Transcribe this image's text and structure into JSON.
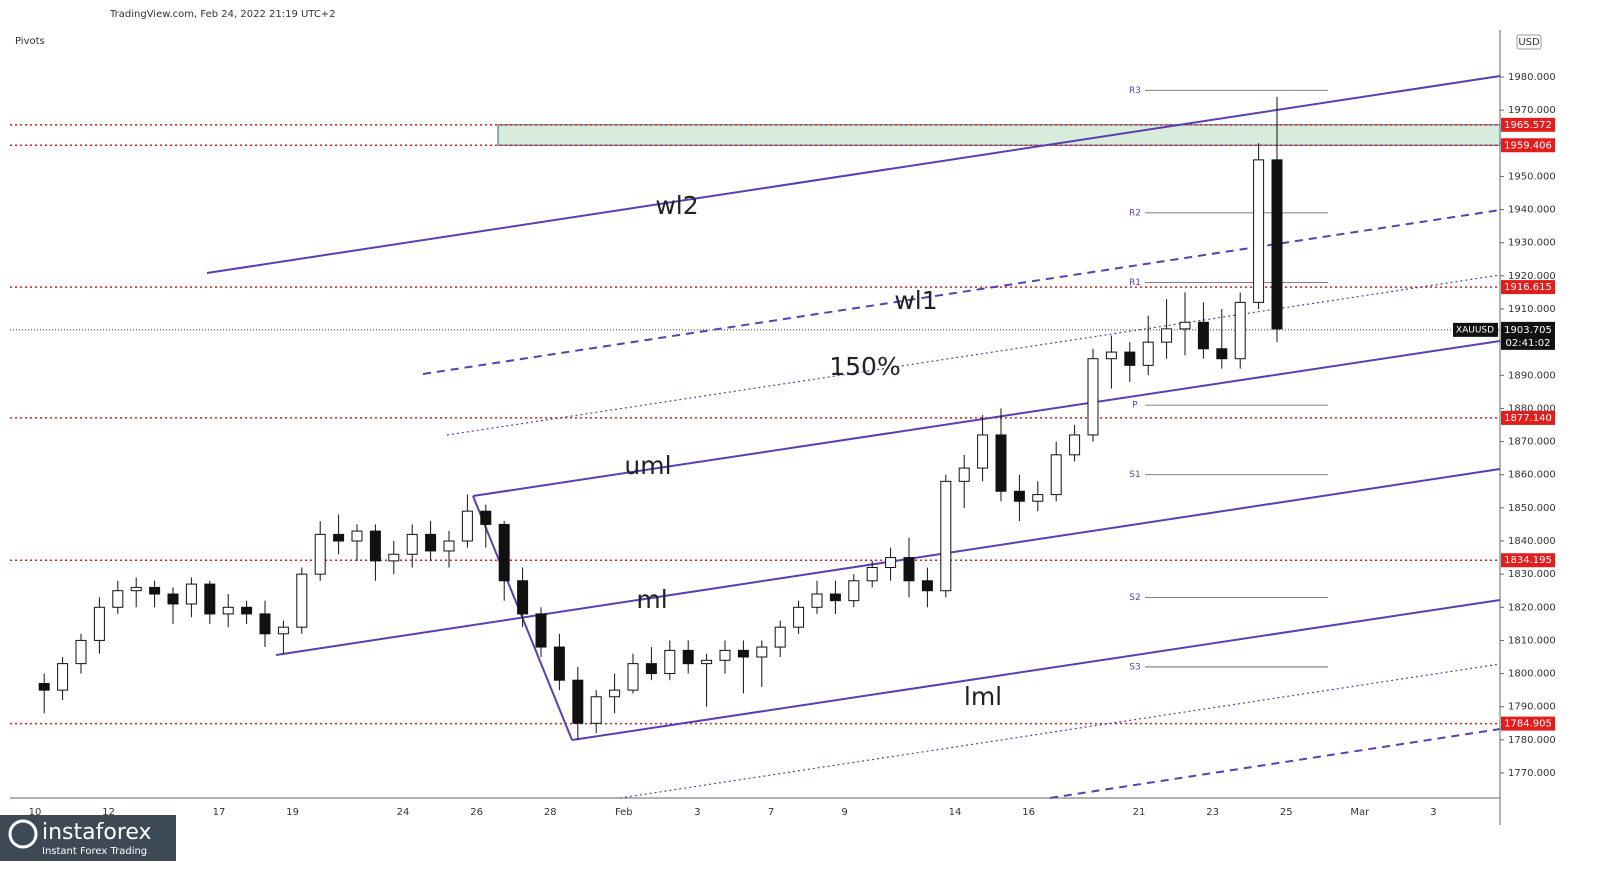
{
  "header": {
    "source": "TradingView.com, Feb 24, 2022 21:19 UTC+2",
    "indicator": "Pivots",
    "currency": "USD"
  },
  "watermark": {
    "brand": "instaforex",
    "tagline": "Instant Forex Trading"
  },
  "chart_data": {
    "type": "candlestick",
    "symbol": "XAUUSD",
    "countdown": "02:41:02",
    "ylim": [
      1770,
      1980
    ],
    "yticks": [
      {
        "value": 1770,
        "label": "1770.000"
      },
      {
        "value": 1780,
        "label": "1780.000"
      },
      {
        "value": 1790,
        "label": "1790.000"
      },
      {
        "value": 1800,
        "label": "1800.000"
      },
      {
        "value": 1810,
        "label": "1810.000"
      },
      {
        "value": 1820,
        "label": "1820.000"
      },
      {
        "value": 1830,
        "label": "1830.000"
      },
      {
        "value": 1840,
        "label": "1840.000"
      },
      {
        "value": 1850,
        "label": "1850.000"
      },
      {
        "value": 1860,
        "label": "1860.000"
      },
      {
        "value": 1870,
        "label": "1870.000"
      },
      {
        "value": 1880,
        "label": "1880.000"
      },
      {
        "value": 1890,
        "label": "1890.000"
      },
      {
        "value": 1900,
        "label": "1900.000"
      },
      {
        "value": 1910,
        "label": "1910.000"
      },
      {
        "value": 1920,
        "label": "1920.000"
      },
      {
        "value": 1930,
        "label": "1930.000"
      },
      {
        "value": 1940,
        "label": "1940.000"
      },
      {
        "value": 1950,
        "label": "1950.000"
      },
      {
        "value": 1960,
        "label": "1960.000"
      },
      {
        "value": 1970,
        "label": "1970.000"
      },
      {
        "value": 1980,
        "label": "1980.000"
      }
    ],
    "xlabels": [
      "10",
      "12",
      "17",
      "19",
      "24",
      "26",
      "28",
      "Feb",
      "3",
      "7",
      "9",
      "14",
      "16",
      "21",
      "23",
      "25",
      "Mar",
      "3"
    ],
    "open": [
      1797,
      1795,
      1803,
      1810,
      1820,
      1825,
      1826,
      1824,
      1821,
      1827,
      1818,
      1820,
      1818,
      1812,
      1814,
      1830,
      1842,
      1840,
      1843,
      1834,
      1836,
      1842,
      1837,
      1840,
      1849,
      1845,
      1828,
      1818,
      1808,
      1798,
      1785,
      1793,
      1795,
      1803,
      1800,
      1807,
      1803,
      1804,
      1807,
      1805,
      1808,
      1814,
      1820,
      1824,
      1822,
      1828,
      1832,
      1835,
      1828,
      1825,
      1858,
      1862,
      1872,
      1855,
      1852,
      1854,
      1866,
      1872,
      1895,
      1897,
      1893,
      1900,
      1904,
      1906,
      1898,
      1895,
      1912,
      1955
    ],
    "high": [
      1800,
      1805,
      1812,
      1823,
      1828,
      1829,
      1828,
      1826,
      1829,
      1828,
      1824,
      1822,
      1822,
      1816,
      1832,
      1846,
      1848,
      1845,
      1845,
      1840,
      1845,
      1846,
      1843,
      1854,
      1851,
      1846,
      1832,
      1820,
      1812,
      1802,
      1795,
      1800,
      1806,
      1808,
      1810,
      1810,
      1806,
      1810,
      1810,
      1810,
      1816,
      1822,
      1828,
      1828,
      1830,
      1834,
      1838,
      1841,
      1832,
      1860,
      1866,
      1878,
      1880,
      1860,
      1858,
      1870,
      1875,
      1898,
      1902,
      1900,
      1908,
      1913,
      1915,
      1912,
      1910,
      1915,
      1960,
      1974
    ],
    "low": [
      1788,
      1792,
      1800,
      1806,
      1818,
      1820,
      1820,
      1815,
      1817,
      1815,
      1814,
      1815,
      1808,
      1806,
      1812,
      1828,
      1836,
      1834,
      1828,
      1830,
      1832,
      1834,
      1832,
      1838,
      1838,
      1822,
      1814,
      1805,
      1795,
      1780,
      1782,
      1788,
      1794,
      1798,
      1798,
      1800,
      1790,
      1800,
      1794,
      1796,
      1805,
      1812,
      1818,
      1818,
      1820,
      1826,
      1828,
      1823,
      1820,
      1823,
      1850,
      1858,
      1852,
      1846,
      1849,
      1852,
      1864,
      1870,
      1886,
      1888,
      1890,
      1895,
      1896,
      1895,
      1892,
      1892,
      1910,
      1900
    ],
    "close": [
      1795,
      1803,
      1810,
      1820,
      1825,
      1826,
      1824,
      1821,
      1827,
      1818,
      1820,
      1818,
      1812,
      1814,
      1830,
      1842,
      1840,
      1843,
      1834,
      1836,
      1842,
      1837,
      1840,
      1849,
      1845,
      1828,
      1818,
      1808,
      1798,
      1785,
      1793,
      1795,
      1803,
      1800,
      1807,
      1803,
      1804,
      1807,
      1805,
      1808,
      1814,
      1820,
      1824,
      1822,
      1828,
      1832,
      1835,
      1828,
      1825,
      1858,
      1862,
      1872,
      1855,
      1852,
      1854,
      1866,
      1872,
      1895,
      1897,
      1893,
      1900,
      1904,
      1906,
      1898,
      1895,
      1912,
      1955,
      1904
    ],
    "levels": [
      1965.572,
      1959.406,
      1916.615,
      {
        "value": 1877.14,
        "label": "1877.140"
      },
      1834.195,
      1784.905
    ],
    "last_price": 1903.705,
    "pivots": [
      {
        "name": "R3",
        "value": 1976
      },
      {
        "name": "R2",
        "value": 1939
      },
      {
        "name": "R1",
        "value": 1918
      },
      {
        "name": "P",
        "value": 1881
      },
      {
        "name": "S1",
        "value": 1860
      },
      {
        "name": "S2",
        "value": 1823
      },
      {
        "name": "S3",
        "value": 1802
      }
    ],
    "annotations": [
      "wl2",
      "wl1",
      "150%",
      "uml",
      "ml",
      "lml"
    ]
  }
}
